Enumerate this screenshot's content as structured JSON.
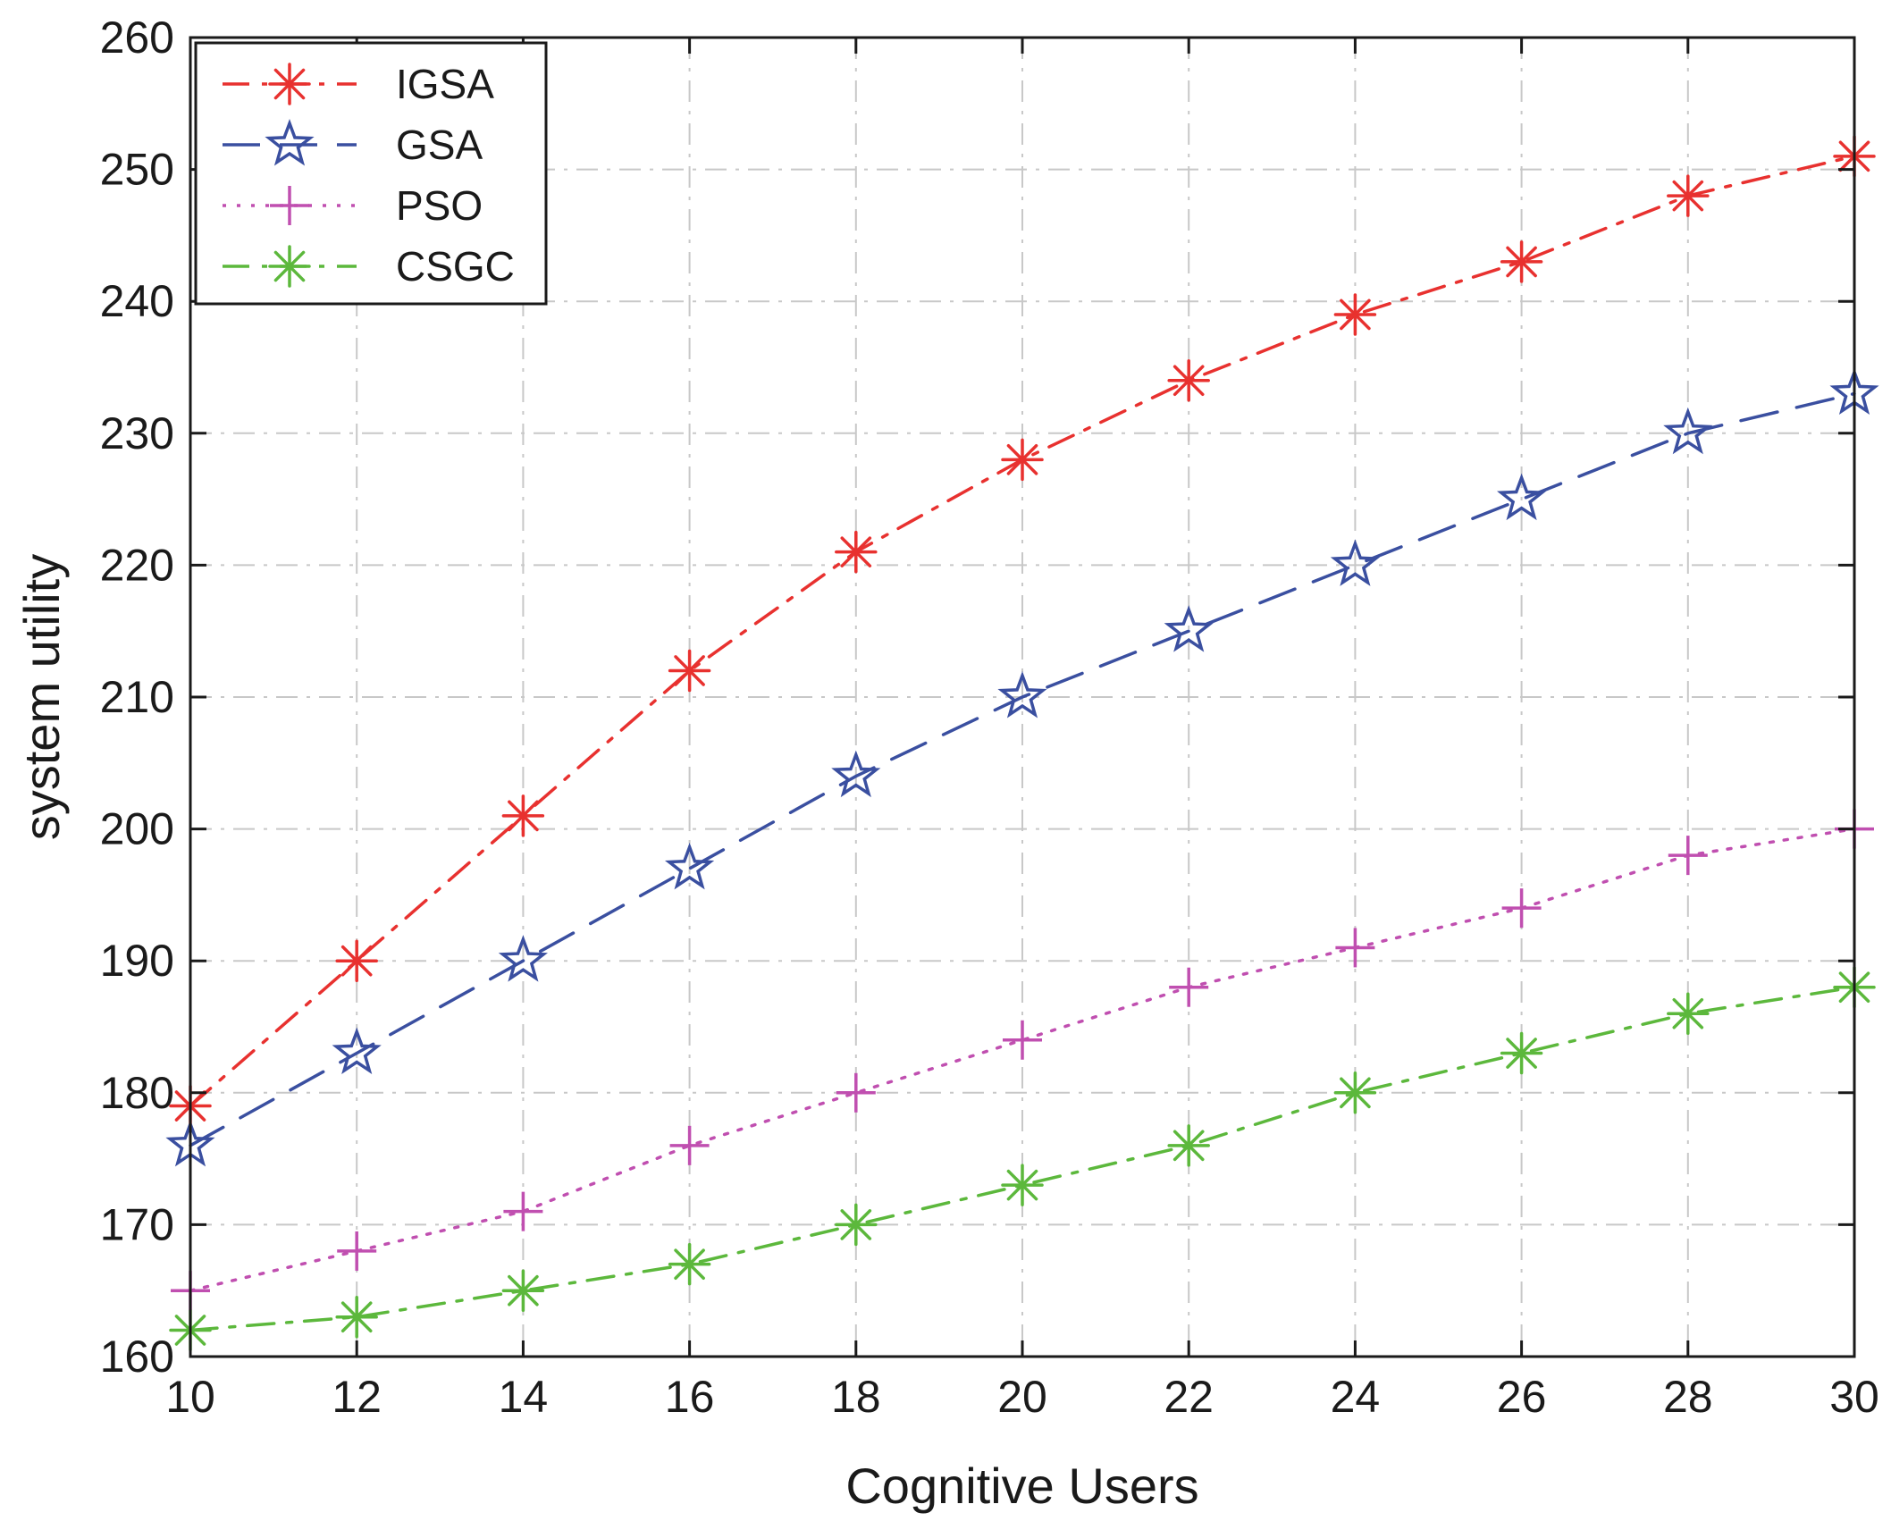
{
  "chart_data": {
    "type": "line",
    "title": "",
    "xlabel": "Cognitive Users",
    "ylabel": "system utility",
    "xlim": [
      10,
      30
    ],
    "ylim": [
      160,
      260
    ],
    "xticks": [
      10,
      12,
      14,
      16,
      18,
      20,
      22,
      24,
      26,
      28,
      30
    ],
    "yticks": [
      160,
      170,
      180,
      190,
      200,
      210,
      220,
      230,
      240,
      250,
      260
    ],
    "grid": true,
    "legend_position": "top-left",
    "x": [
      10,
      12,
      14,
      16,
      18,
      20,
      22,
      24,
      26,
      28,
      30
    ],
    "series": [
      {
        "name": "IGSA",
        "values": [
          179,
          190,
          201,
          212,
          221,
          228,
          234,
          239,
          243,
          248,
          251
        ],
        "color": "#e8312f",
        "marker": "asterisk",
        "dash": "dashdot"
      },
      {
        "name": "GSA",
        "values": [
          176,
          183,
          190,
          197,
          204,
          210,
          215,
          220,
          225,
          230,
          233
        ],
        "color": "#3a4fa0",
        "marker": "star",
        "dash": "dashed"
      },
      {
        "name": "PSO",
        "values": [
          165,
          168,
          171,
          176,
          180,
          184,
          188,
          191,
          194,
          198,
          200
        ],
        "color": "#c04fb0",
        "marker": "plus",
        "dash": "dotted"
      },
      {
        "name": "CSGC",
        "values": [
          162,
          163,
          165,
          167,
          170,
          173,
          176,
          180,
          183,
          186,
          188
        ],
        "color": "#5cb83c",
        "marker": "asterisk",
        "dash": "dashdot"
      }
    ]
  }
}
